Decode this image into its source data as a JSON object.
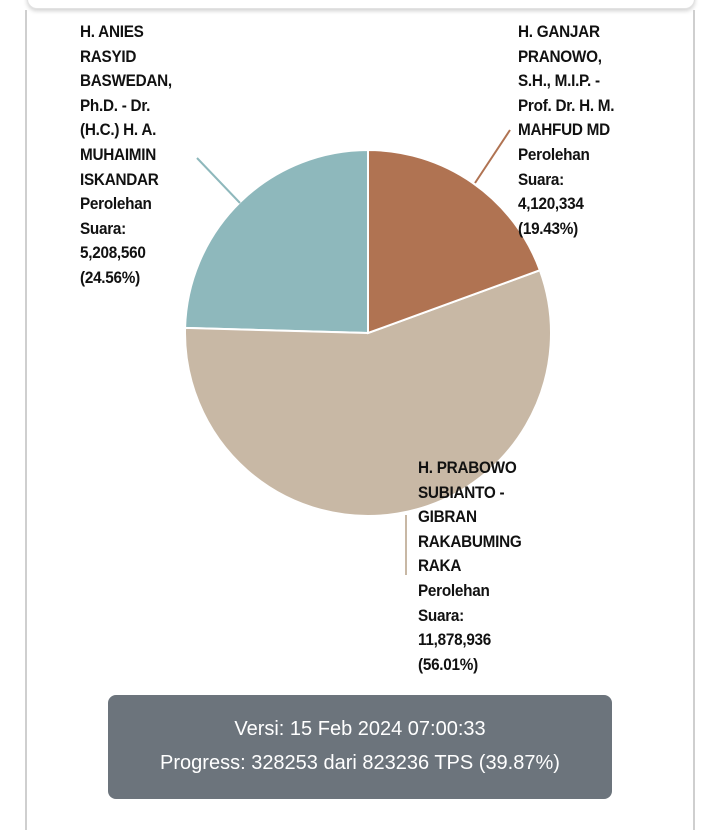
{
  "chart_data": {
    "type": "pie",
    "slices": [
      {
        "label": "H. GANJAR PRANOWO, S.H., M.I.P. - Prof. Dr. H. M. MAHFUD MD",
        "value_label": "Perolehan Suara: 4,120,334 (19.43%)",
        "value": 4120334,
        "percent": 19.43,
        "color": "#b07352"
      },
      {
        "label": "H. PRABOWO SUBIANTO - GIBRAN RAKABUMING RAKA",
        "value_label": "Perolehan Suara: 11,878,936 (56.01%)",
        "value": 11878936,
        "percent": 56.01,
        "color": "#c8b8a5"
      },
      {
        "label": "H. ANIES RASYID BASWEDAN, Ph.D. - Dr. (H.C.) H. A. MUHAIMIN ISKANDAR",
        "value_label": "Perolehan Suara: 5,208,560 (24.56%)",
        "value": 5208560,
        "percent": 24.56,
        "color": "#8eb8bc"
      }
    ]
  },
  "labels": {
    "ganjar": "H. GANJAR\nPRANOWO,\nS.H., M.I.P. -\nProf. Dr. H. M.\nMAHFUD MD\nPerolehan\nSuara:\n4,120,334\n(19.43%)",
    "prabowo": "H. PRABOWO\nSUBIANTO -\nGIBRAN\nRAKABUMING\nRAKA\nPerolehan\nSuara:\n11,878,936\n(56.01%)",
    "anies": "H. ANIES\nRASYID\nBASWEDAN,\nPh.D. - Dr.\n(H.C.) H. A.\nMUHAIMIN\nISKANDAR\nPerolehan\nSuara:\n5,208,560\n(24.56%)"
  },
  "info": {
    "version": "Versi: 15 Feb 2024 07:00:33",
    "progress": "Progress: 328253 dari 823236 TPS (39.87%)"
  }
}
